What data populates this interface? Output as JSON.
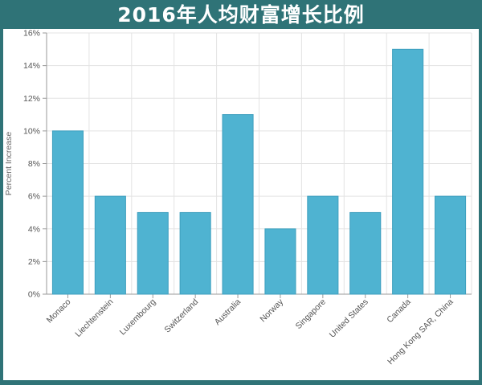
{
  "title": "2016年人均财富增长比例",
  "chart_data": {
    "type": "bar",
    "title": "2016年人均财富增长比例",
    "ylabel": "Percent Increase",
    "xlabel": "",
    "categories": [
      "Monaco",
      "Liechtenstein",
      "Luxembourg",
      "Switzerland",
      "Australia",
      "Norway",
      "Singapore",
      "United States",
      "Canada",
      "Hong Kong SAR, China"
    ],
    "values": [
      10,
      6,
      5,
      5,
      11,
      4,
      6,
      5,
      15,
      6
    ],
    "ylim": [
      0,
      16
    ],
    "yticks": [
      0,
      2,
      4,
      6,
      8,
      10,
      12,
      14,
      16
    ],
    "ytick_labels": [
      "0%",
      "2%",
      "4%",
      "6%",
      "8%",
      "10%",
      "12%",
      "14%",
      "16%"
    ],
    "grid": true,
    "bar_color": "#4fb3d1",
    "bar_edge_color": "#3d9fbe"
  }
}
